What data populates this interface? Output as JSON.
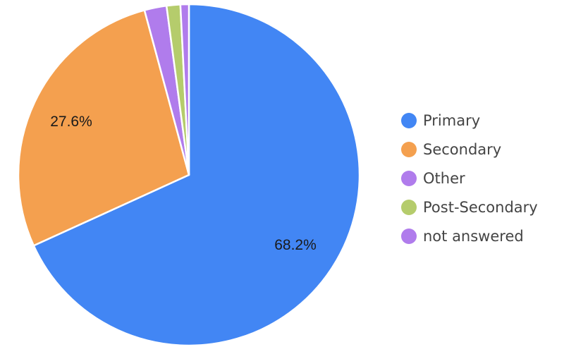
{
  "chart_data": {
    "type": "pie",
    "categories": [
      "Primary",
      "Secondary",
      "Other",
      "Post-Secondary",
      "not answered"
    ],
    "values": [
      68.2,
      27.6,
      2.1,
      1.3,
      0.8
    ],
    "data_labels": [
      "68.2%",
      "27.6%",
      "",
      "",
      ""
    ],
    "colors": [
      "#4286f4",
      "#f4a04f",
      "#b07cec",
      "#b5cc6c",
      "#b07cec"
    ],
    "legend_position": "right",
    "start_angle": "12 o'clock, clockwise",
    "title": ""
  },
  "legend": {
    "items": [
      {
        "label": "Primary",
        "color": "#4286f4"
      },
      {
        "label": "Secondary",
        "color": "#f4a04f"
      },
      {
        "label": "Other",
        "color": "#b07cec"
      },
      {
        "label": "Post-Secondary",
        "color": "#b5cc6c"
      },
      {
        "label": "not answered",
        "color": "#b07cec"
      }
    ]
  }
}
